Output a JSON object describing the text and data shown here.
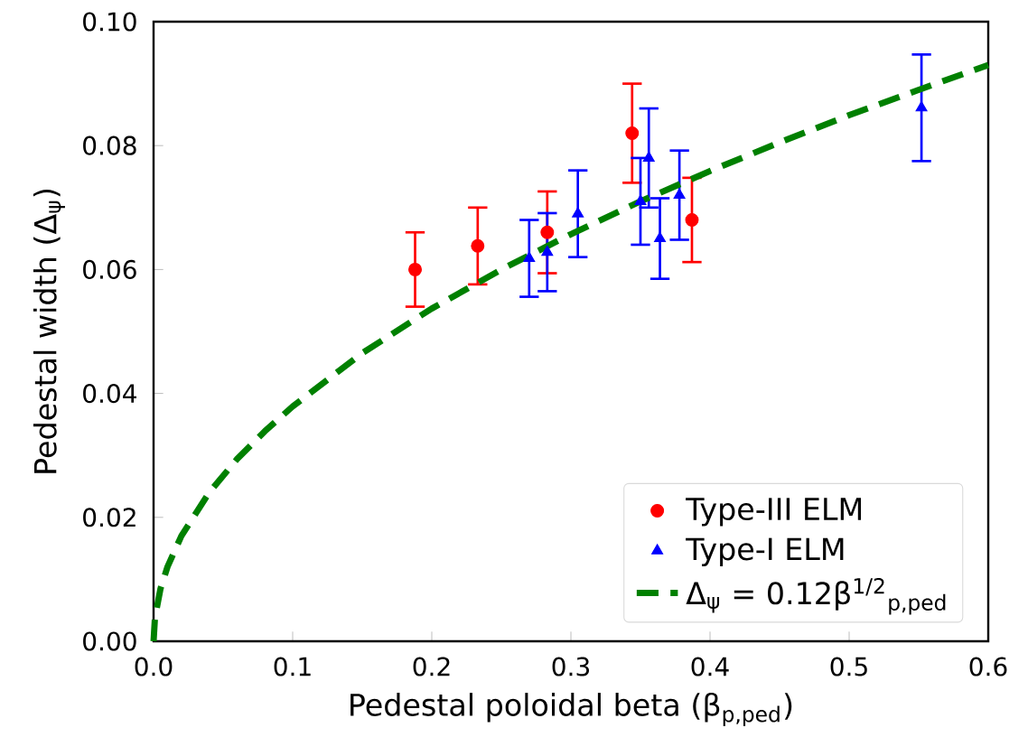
{
  "chart_data": {
    "type": "scatter",
    "xlabel": "Pedestal poloidal beta (β$_{p,ped}$)",
    "ylabel": "Pedestal width (Δ$_{ψ}$)",
    "xlim": [
      0,
      0.6
    ],
    "ylim": [
      0,
      0.1
    ],
    "xticks": [
      {
        "value": 0,
        "label": "0.0"
      },
      {
        "value": 0.1,
        "label": "0.1"
      },
      {
        "value": 0.2,
        "label": "0.2"
      },
      {
        "value": 0.3,
        "label": "0.3"
      },
      {
        "value": 0.4,
        "label": "0.4"
      },
      {
        "value": 0.5,
        "label": "0.5"
      },
      {
        "value": 0.6,
        "label": "0.6"
      }
    ],
    "yticks": [
      {
        "value": 0,
        "label": "0.00"
      },
      {
        "value": 0.02,
        "label": "0.02"
      },
      {
        "value": 0.04,
        "label": "0.04"
      },
      {
        "value": 0.06,
        "label": "0.06"
      },
      {
        "value": 0.08,
        "label": "0.08"
      },
      {
        "value": 0.1,
        "label": "0.10"
      }
    ],
    "legend": "bottom right",
    "series": [
      {
        "name": "Type-III ELM",
        "marker": "circle",
        "color": "#ff0000",
        "x": [
          0.188,
          0.233,
          0.283,
          0.344,
          0.387
        ],
        "values": [
          0.06,
          0.0638,
          0.066,
          0.082,
          0.068
        ],
        "errors": [
          0.006,
          0.0062,
          0.0066,
          0.008,
          0.0068
        ]
      },
      {
        "name": "Type-I ELM",
        "marker": "triangle",
        "color": "#0000ff",
        "x": [
          0.27,
          0.283,
          0.305,
          0.35,
          0.356,
          0.364,
          0.378,
          0.552
        ],
        "values": [
          0.0618,
          0.0628,
          0.069,
          0.071,
          0.078,
          0.065,
          0.072,
          0.0861
        ],
        "errors": [
          0.0062,
          0.0063,
          0.007,
          0.007,
          0.008,
          0.0065,
          0.0072,
          0.0086
        ]
      },
      {
        "name": "Δ$_{ψ}$ = 0.12β$^{1/2}$$_{p,ped}$",
        "type": "line",
        "marker": "none",
        "line_style": "dashed",
        "color": "#008000",
        "x": [
          0,
          0.001,
          0.005,
          0.01,
          0.02,
          0.04,
          0.06,
          0.08,
          0.1,
          0.15,
          0.2,
          0.25,
          0.3,
          0.35,
          0.4,
          0.45,
          0.5,
          0.55,
          0.6
        ],
        "values": [
          0,
          0.0038,
          0.0085,
          0.012,
          0.017,
          0.024,
          0.0294,
          0.0339,
          0.0379,
          0.0465,
          0.0537,
          0.06,
          0.0657,
          0.071,
          0.0759,
          0.0805,
          0.0849,
          0.089,
          0.093
        ]
      }
    ]
  }
}
